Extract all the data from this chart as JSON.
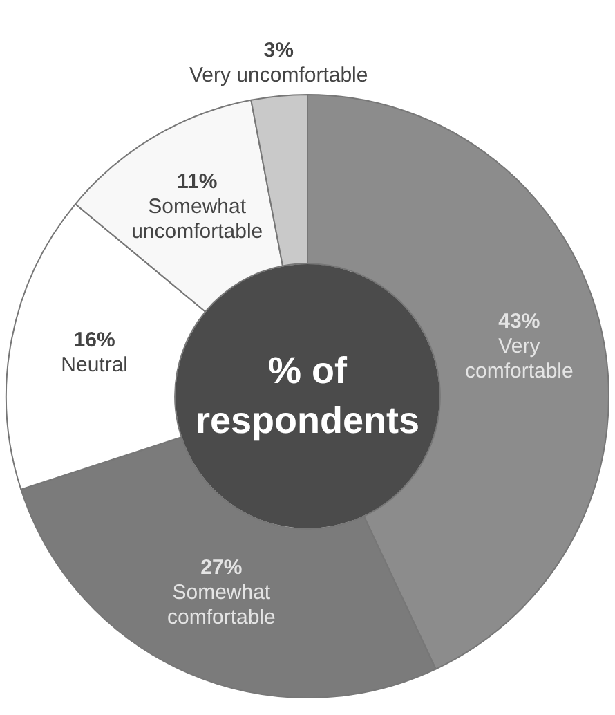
{
  "chart_data": {
    "type": "donut",
    "title": "% of respondents",
    "categories": [
      "Very comfortable",
      "Somewhat comfortable",
      "Neutral",
      "Somewhat uncomfortable",
      "Very uncomfortable"
    ],
    "values": [
      43,
      27,
      16,
      11,
      3
    ],
    "colors": [
      "#8c8c8c",
      "#7b7b7b",
      "#ffffff",
      "#f8f8f8",
      "#c9c9c9"
    ],
    "value_labels": [
      "43%",
      "27%",
      "16%",
      "11%",
      "3%"
    ],
    "legend": false
  }
}
